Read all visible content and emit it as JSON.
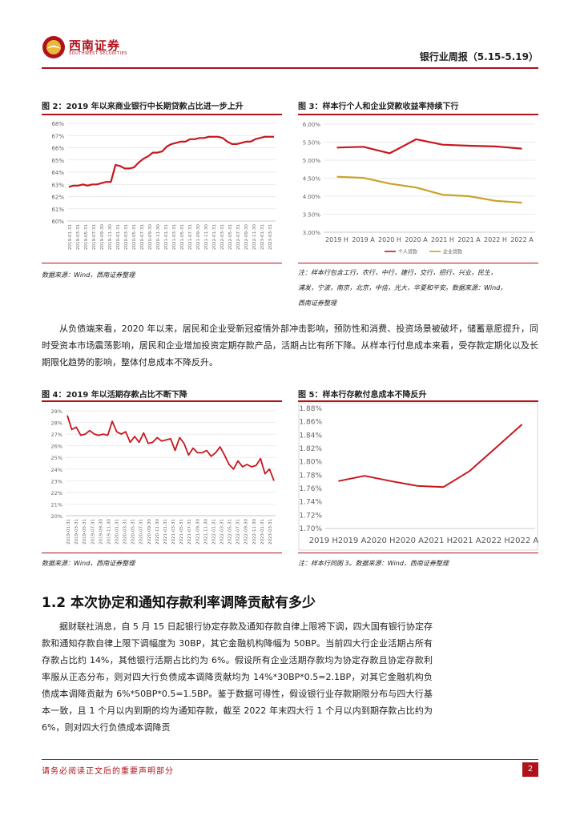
{
  "header": {
    "logo_text": "西南证券",
    "logo_sub": "SOUTHWEST SECURITIES",
    "report_title": "银行业周报（5.15-5.19）"
  },
  "figures": {
    "fig2": {
      "title": "图 2：2019 年以来商业银行中长期贷款占比进一步上升",
      "source": "数据来源：Wind，西南证券整理"
    },
    "fig3": {
      "title": "图 3：样本行个人和企业贷款收益率持续下行",
      "note_lines": [
        "注：样本行包含工行，农行，中行，建行，交行，招行，兴业，民生，",
        "浦发，宁波，南京，北京，中信，光大，华夏和平安。数据来源：Wind，",
        "西南证券整理"
      ]
    },
    "fig4": {
      "title": "图 4：2019 年以活期存款占比不断下降",
      "source": "数据来源：Wind，西南证券整理"
    },
    "fig5": {
      "title": "图 5：样本行存款付息成本不降反升",
      "source": "注：样本行同图 3。数据来源：Wind，西南证券整理"
    }
  },
  "text": {
    "para1": "从负债端来看，2020 年以来，居民和企业受新冠疫情外部冲击影响，预防性和消费、投资场景被破坏，储蓄意愿提升，同时受资本市场震荡影响，居民和企业增加投资定期存款产品，活期占比有所下降。从样本行付息成本来看，受存款定期化以及长期限化趋势的影响，整体付息成本不降反升。",
    "section_title": "1.2 本次协定和通知存款利率调降贡献有多少",
    "para2": "据财联社消息，自 5 月 15 日起银行协定存款及通知存款自律上限将下调，四大国有银行协定存款和通知存款自律上限下调幅度为 30BP，其它金融机构降幅为 50BP。当前四大行企业活期占所有存款占比约 14%，其他银行活期占比约为 6%。假设所有企业活期存款均为协定存款且协定存款利率服从正态分布，则对四大行负债成本调降贡献均为 14%*30BP*0.5=2.1BP，对其它金融机构负债成本调降贡献为 6%*50BP*0.5=1.5BP。鉴于数据可得性，假设银行业存款期限分布与四大行基本一致，且 1 个月以内到期的均为通知存款，截至 2022 年末四大行 1 个月以内到期存款占比约为 6%，则对四大行负债成本调降贡"
  },
  "footer": {
    "disclaimer": "请务必阅读正文后的重要声明部分",
    "page": "2"
  },
  "chart_data": [
    {
      "id": "fig2",
      "type": "line",
      "yticks": [
        "68%",
        "67%",
        "66%",
        "65%",
        "64%",
        "63%",
        "62%",
        "61%",
        "60%"
      ],
      "ylim": [
        60,
        68
      ],
      "xticks": [
        "2019-01-31",
        "2019-03-31",
        "2019-05-31",
        "2019-07-31",
        "2019-09-30",
        "2019-11-30",
        "2020-01-31",
        "2020-03-31",
        "2020-05-31",
        "2020-07-31",
        "2020-09-30",
        "2020-11-30",
        "2021-01-31",
        "2021-03-31",
        "2021-05-31",
        "2021-07-31",
        "2021-09-30",
        "2021-11-30",
        "2022-01-31",
        "2022-03-31",
        "2022-05-31",
        "2022-07-31",
        "2022-09-30",
        "2022-11-30",
        "2023-01-31",
        "2023-03-31"
      ],
      "series": [
        {
          "color": "#c8161d",
          "values": [
            62.8,
            62.9,
            62.9,
            63.0,
            62.9,
            63.0,
            63.0,
            63.1,
            63.2,
            63.2,
            64.6,
            64.5,
            64.3,
            64.3,
            64.4,
            64.8,
            65.1,
            65.3,
            65.6,
            65.6,
            65.7,
            66.1,
            66.3,
            66.4,
            66.5,
            66.5,
            66.7,
            66.7,
            66.8,
            66.8,
            66.9,
            66.9,
            66.9,
            66.8,
            66.5,
            66.3,
            66.3,
            66.4,
            66.5,
            66.5,
            66.7,
            66.8,
            66.9,
            66.9,
            66.9
          ]
        }
      ]
    },
    {
      "id": "fig3",
      "type": "line",
      "yticks": [
        "6.00%",
        "5.50%",
        "5.00%",
        "4.50%",
        "4.00%",
        "3.50%",
        "3.00%"
      ],
      "ylim": [
        3.0,
        6.0
      ],
      "categories": [
        "2019 H",
        "2019 A",
        "2020 H",
        "2020 A",
        "2021 H",
        "2021 A",
        "2022 H",
        "2022 A"
      ],
      "series": [
        {
          "name": "个人贷款",
          "color": "#c8161d",
          "values": [
            5.35,
            5.37,
            5.19,
            5.58,
            5.43,
            5.4,
            5.38,
            5.32
          ]
        },
        {
          "name": "企业贷款",
          "color": "#c9a227",
          "values": [
            4.54,
            4.51,
            4.35,
            4.24,
            4.04,
            4.0,
            3.87,
            3.82
          ]
        }
      ]
    },
    {
      "id": "fig4",
      "type": "line",
      "yticks": [
        "29%",
        "28%",
        "27%",
        "26%",
        "25%",
        "24%",
        "23%",
        "22%",
        "21%",
        "20%"
      ],
      "ylim": [
        20,
        29
      ],
      "xticks": [
        "2019-01-31",
        "2019-03-31",
        "2019-05-31",
        "2019-07-31",
        "2019-09-30",
        "2019-11-30",
        "2020-01-31",
        "2020-03-31",
        "2020-05-31",
        "2020-07-31",
        "2020-09-30",
        "2020-11-30",
        "2021-01-31",
        "2021-03-31",
        "2021-05-31",
        "2021-07-31",
        "2021-09-30",
        "2021-11-30",
        "2022-01-31",
        "2022-03-31",
        "2022-05-31",
        "2022-07-31",
        "2022-09-30",
        "2022-11-30",
        "2023-01-31",
        "2023-03-31"
      ],
      "series": [
        {
          "color": "#c8161d",
          "values": [
            28.6,
            27.4,
            27.6,
            26.9,
            27.0,
            27.3,
            27.0,
            26.9,
            27.0,
            26.9,
            28.1,
            27.2,
            27.0,
            27.2,
            26.3,
            26.8,
            26.3,
            27.1,
            26.2,
            26.3,
            26.7,
            26.4,
            26.5,
            26.6,
            25.6,
            26.7,
            26.2,
            25.2,
            25.8,
            25.4,
            25.4,
            25.6,
            25.1,
            25.4,
            25.9,
            25.2,
            24.4,
            24.0,
            24.7,
            24.2,
            24.4,
            24.2,
            24.3,
            24.9,
            23.6,
            24.0,
            23.0
          ]
        }
      ]
    },
    {
      "id": "fig5",
      "type": "line",
      "yticks": [
        "1.88%",
        "1.86%",
        "1.84%",
        "1.82%",
        "1.80%",
        "1.78%",
        "1.76%",
        "1.74%",
        "1.72%",
        "1.70%"
      ],
      "ylim": [
        1.7,
        1.88
      ],
      "xlabel_text": "2019 H2019 A2020 H2020 A2021 H2021 A2022 H2022 A",
      "categories": [
        "2019 H",
        "2019 A",
        "2020 H",
        "2020 A",
        "2021 H",
        "2021 A",
        "2022 H",
        "2022 A"
      ],
      "series": [
        {
          "color": "#c8161d",
          "values": [
            1.771,
            1.779,
            1.771,
            1.764,
            1.762,
            1.786,
            1.821,
            1.856
          ]
        }
      ]
    }
  ]
}
